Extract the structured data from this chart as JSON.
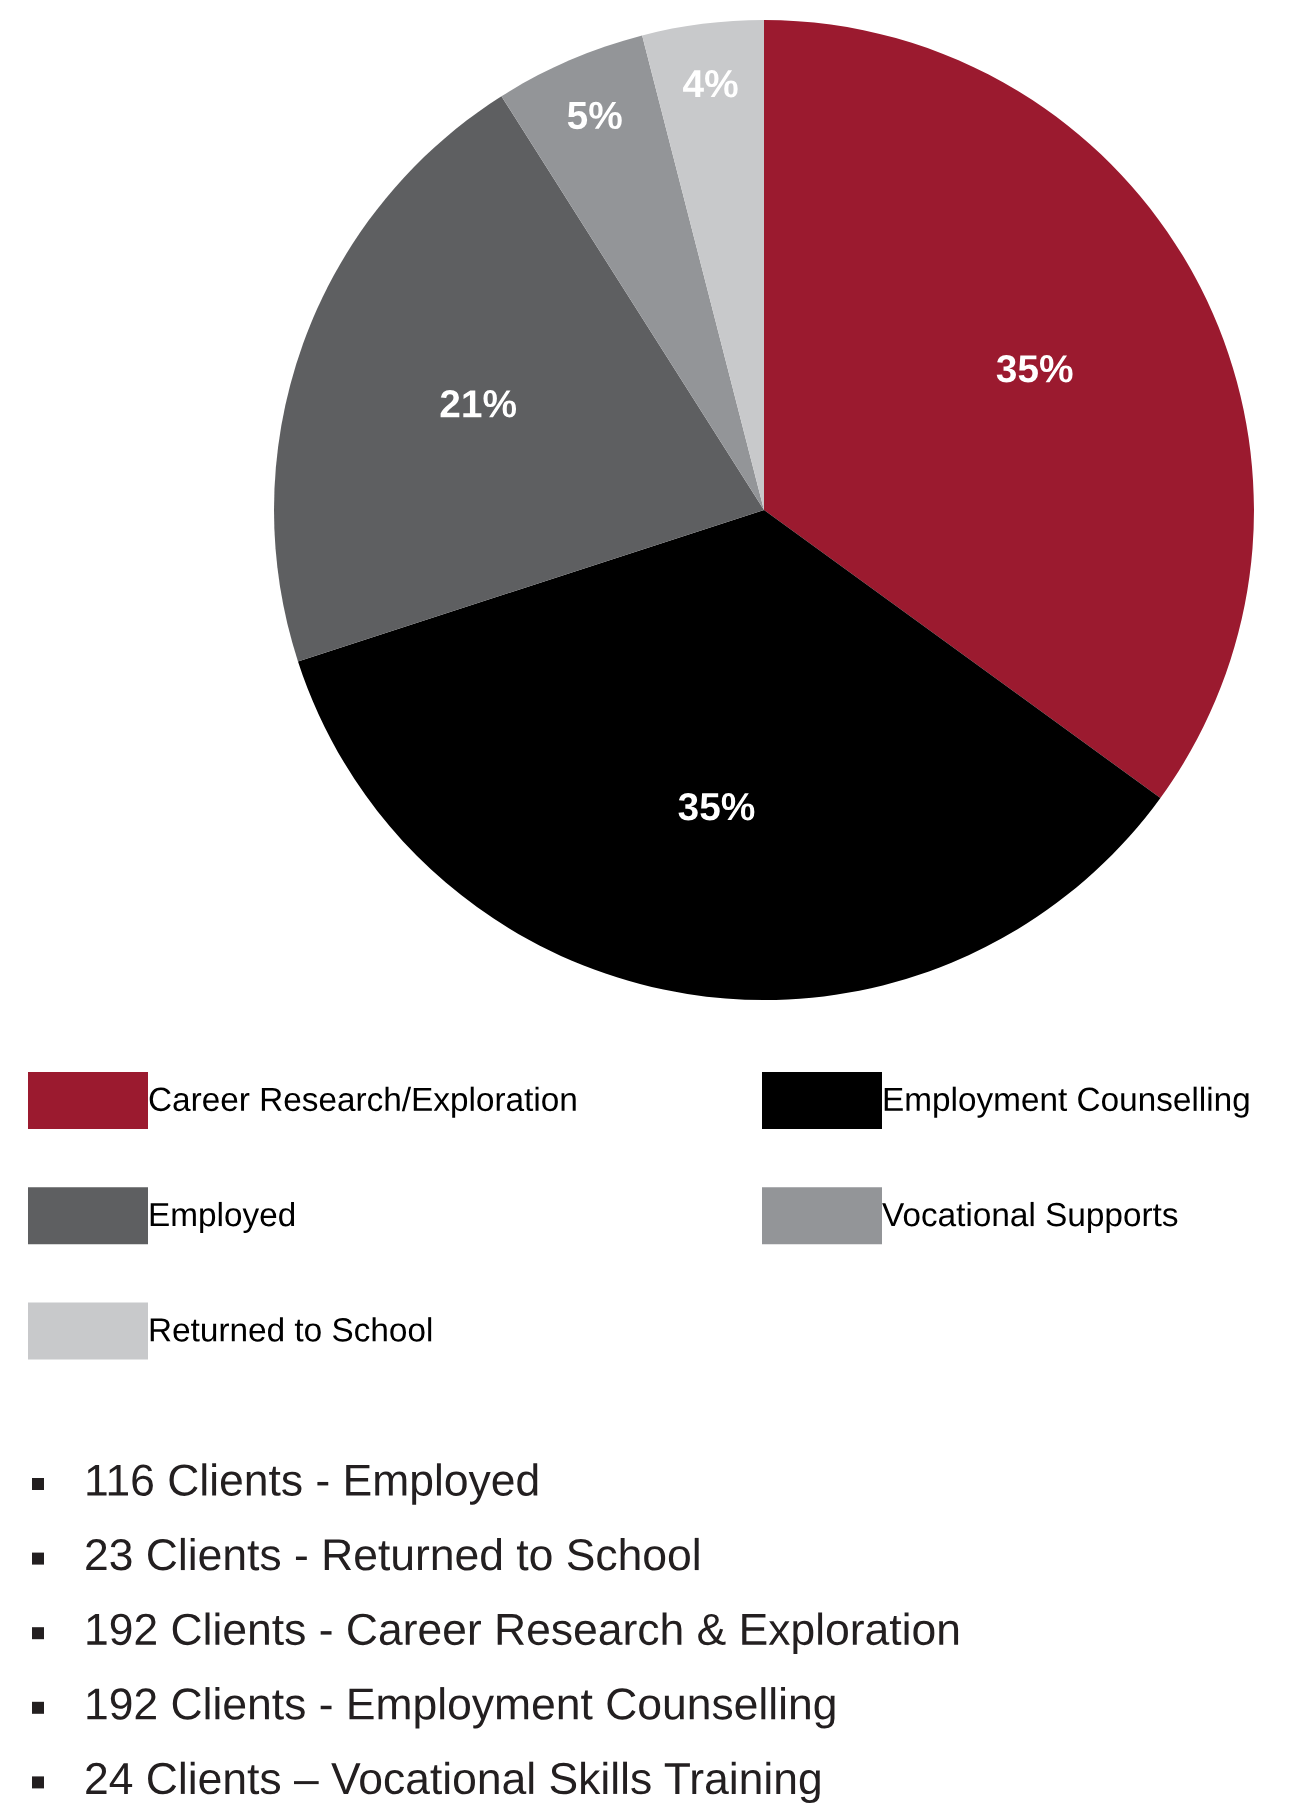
{
  "chart_data": {
    "type": "pie",
    "categories": [
      "Career Research/Exploration",
      "Employment Counselling",
      "Employed",
      "Vocational Supports",
      "Returned to School"
    ],
    "values": [
      35,
      35,
      21,
      5,
      4
    ],
    "value_labels": [
      "35%",
      "35%",
      "21%",
      "5%",
      "4%"
    ],
    "colors": [
      "#9b1a2f",
      "#000000",
      "#5e5f61",
      "#939598",
      "#c8c9cb"
    ],
    "legend": "bottom",
    "annotations": [
      "116 Clients - Employed",
      "23 Clients - Returned to School",
      "192 Clients - Career Research & Exploration",
      "192 Clients - Employment Counselling",
      "24 Clients – Vocational Skills Training"
    ]
  }
}
